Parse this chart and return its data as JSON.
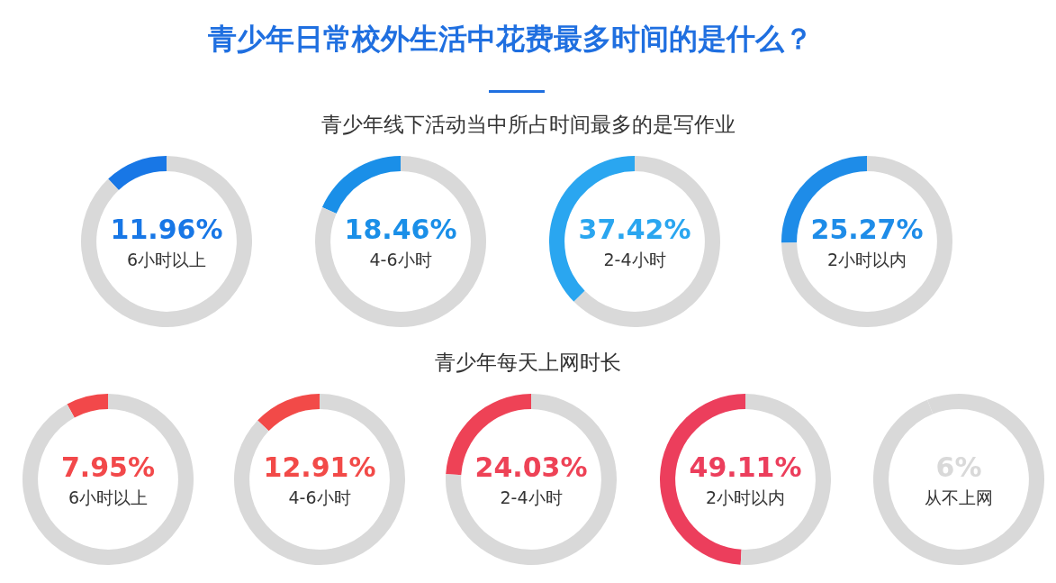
{
  "chart_data": [
    {
      "type": "donut",
      "title": "青少年日常校外生活中花费最多时间的是什么？",
      "subtitle": "青少年线下活动当中所占时间最多的是写作业",
      "categories": [
        "6小时以上",
        null
      ],
      "values": [
        11.96,
        88.04
      ],
      "colors": [
        "#1877e6",
        "#d9d9d9"
      ],
      "value_labels": [
        "11.96%",
        null
      ]
    },
    {
      "type": "donut",
      "categories": [
        "4-6小时",
        null
      ],
      "values": [
        18.46,
        81.54
      ],
      "colors": [
        "#1a8fe8",
        "#d9d9d9"
      ],
      "value_labels": [
        "18.46%",
        null
      ]
    },
    {
      "type": "donut",
      "categories": [
        "2-4小时",
        null
      ],
      "values": [
        37.42,
        62.58
      ],
      "colors": [
        "#2aa6f0",
        "#d9d9d9"
      ],
      "value_labels": [
        "37.42%",
        null
      ]
    },
    {
      "type": "donut",
      "categories": [
        "2小时以内",
        null
      ],
      "values": [
        25.27,
        74.73
      ],
      "colors": [
        "#1e8ce8",
        "#d9d9d9"
      ],
      "value_labels": [
        "25.27%",
        null
      ]
    },
    {
      "type": "donut",
      "categories": [
        "6小时以上",
        null
      ],
      "values": [
        7.95,
        92.05
      ],
      "colors": [
        "#f2484a",
        "#d9d9d9"
      ],
      "value_labels": [
        "7.95%",
        null
      ]
    },
    {
      "type": "donut",
      "categories": [
        "4-6小时",
        null
      ],
      "values": [
        12.91,
        87.09
      ],
      "colors": [
        "#f24a48",
        "#d9d9d9"
      ],
      "value_labels": [
        "12.91%",
        null
      ]
    },
    {
      "type": "donut",
      "subtitle": "青少年每天上网时长",
      "categories": [
        "2-4小时",
        null
      ],
      "values": [
        24.03,
        75.97
      ],
      "colors": [
        "#ee4256",
        "#d9d9d9"
      ],
      "value_labels": [
        "24.03%",
        null
      ]
    },
    {
      "type": "donut",
      "categories": [
        "2小时以内",
        null
      ],
      "values": [
        49.11,
        50.89
      ],
      "colors": [
        "#ec3e5c",
        "#d9d9d9"
      ],
      "value_labels": [
        "49.11%",
        null
      ]
    },
    {
      "type": "donut",
      "categories": [
        "从不上网",
        null
      ],
      "values": [
        6,
        94
      ],
      "colors": [
        "#d9d9d9",
        "#d9d9d9"
      ],
      "value_labels": [
        "6%",
        null
      ]
    }
  ]
}
